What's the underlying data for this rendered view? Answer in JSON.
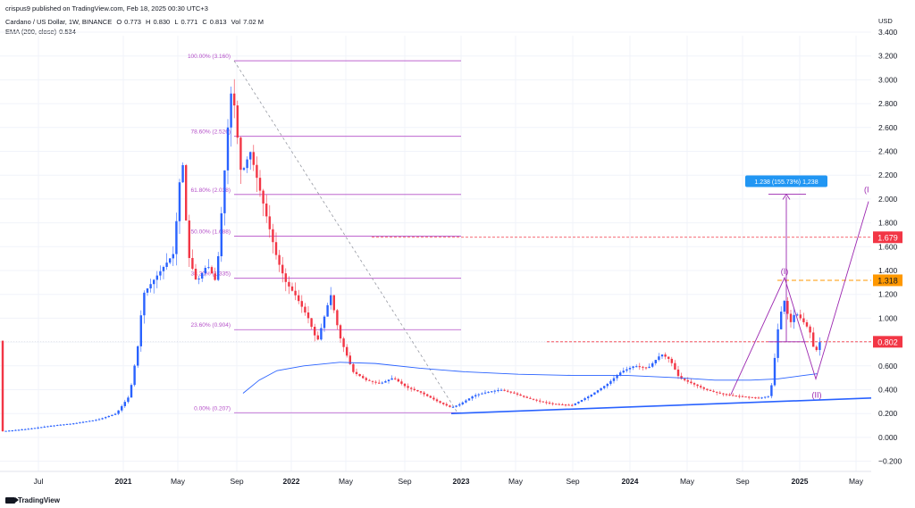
{
  "header": {
    "publisher": "crispus9 published on TradingView.com, Feb 18, 2025 00:30 UTC+3",
    "symbol": "Cardano / US Dollar, 1W, BINANCE",
    "open_label": "O",
    "open": "0.773",
    "high_label": "H",
    "high": "0.830",
    "low_label": "L",
    "low": "0.771",
    "close_label": "C",
    "close": "0.813",
    "vol_label": "Vol",
    "vol": "7.02 M",
    "ema_label": "EMA (200, close)",
    "ema": "0.534"
  },
  "brand": "TradingView",
  "colors": {
    "up": "#2962ff",
    "down": "#f23645",
    "fib": "#b44fc8",
    "ema": "#2962ff",
    "price_badge": "#f23645",
    "orange": "#ff9800",
    "grid": "#f0f3fa"
  },
  "chart_data": {
    "type": "candlestick",
    "currency": "USD",
    "x_ticks": [
      "Jul",
      "2021",
      "May",
      "Sep",
      "2022",
      "May",
      "Sep",
      "2023",
      "May",
      "Sep",
      "2024",
      "May",
      "Sep",
      "2025",
      "May"
    ],
    "y_ticks": [
      "3.400",
      "3.200",
      "3.000",
      "2.800",
      "2.600",
      "2.400",
      "2.200",
      "2.000",
      "1.800",
      "1.600",
      "1.400",
      "1.200",
      "1.000",
      "0.800",
      "0.600",
      "0.400",
      "0.200",
      "0.000",
      "−0.200"
    ],
    "ylim": [
      -0.25,
      3.45
    ],
    "price_badges": [
      {
        "value": 1.679,
        "label": "1.679",
        "color": "#f23645"
      },
      {
        "value": 1.318,
        "label": "1.318",
        "color": "#ff9800"
      },
      {
        "value": 0.802,
        "label": "0.802",
        "color": "#f23645"
      }
    ],
    "fib_levels": [
      {
        "value": 3.16,
        "label": "100.00% (3.160)"
      },
      {
        "value": 2.526,
        "label": "78.60% (2.526)"
      },
      {
        "value": 2.038,
        "label": "61.80% (2.038)"
      },
      {
        "value": 1.688,
        "label": "50.00% (1.688)"
      },
      {
        "value": 1.335,
        "label": "38.20% (1.335)"
      },
      {
        "value": 0.904,
        "label": "23.60% (0.904)"
      },
      {
        "value": 0.207,
        "label": "0.00% (0.207)"
      }
    ],
    "measure_label": "1.238 (155.73%) 1,238",
    "wave_labels": [
      "(I)",
      "(II)",
      "(I"
    ],
    "price_anchors": [
      [
        0,
        0.05
      ],
      [
        30,
        0.07
      ],
      [
        60,
        0.1
      ],
      [
        85,
        0.12
      ],
      [
        110,
        0.15
      ],
      [
        130,
        0.2
      ],
      [
        145,
        0.35
      ],
      [
        155,
        0.8
      ],
      [
        160,
        1.2
      ],
      [
        170,
        1.3
      ],
      [
        180,
        1.4
      ],
      [
        195,
        1.55
      ],
      [
        200,
        2.1
      ],
      [
        205,
        2.3
      ],
      [
        210,
        1.55
      ],
      [
        220,
        1.3
      ],
      [
        232,
        1.45
      ],
      [
        242,
        1.3
      ],
      [
        250,
        2.1
      ],
      [
        258,
        2.9
      ],
      [
        262,
        2.8
      ],
      [
        270,
        2.2
      ],
      [
        280,
        2.4
      ],
      [
        290,
        2.1
      ],
      [
        300,
        1.8
      ],
      [
        310,
        1.5
      ],
      [
        320,
        1.3
      ],
      [
        330,
        1.2
      ],
      [
        345,
        1.0
      ],
      [
        355,
        0.8
      ],
      [
        370,
        1.2
      ],
      [
        380,
        0.85
      ],
      [
        395,
        0.55
      ],
      [
        410,
        0.48
      ],
      [
        425,
        0.45
      ],
      [
        440,
        0.5
      ],
      [
        455,
        0.42
      ],
      [
        470,
        0.38
      ],
      [
        490,
        0.3
      ],
      [
        505,
        0.25
      ],
      [
        515,
        0.28
      ],
      [
        530,
        0.35
      ],
      [
        545,
        0.38
      ],
      [
        560,
        0.4
      ],
      [
        575,
        0.37
      ],
      [
        590,
        0.33
      ],
      [
        605,
        0.3
      ],
      [
        620,
        0.28
      ],
      [
        640,
        0.27
      ],
      [
        660,
        0.35
      ],
      [
        680,
        0.45
      ],
      [
        695,
        0.55
      ],
      [
        710,
        0.6
      ],
      [
        725,
        0.58
      ],
      [
        740,
        0.7
      ],
      [
        750,
        0.65
      ],
      [
        760,
        0.5
      ],
      [
        775,
        0.45
      ],
      [
        790,
        0.4
      ],
      [
        805,
        0.37
      ],
      [
        820,
        0.35
      ],
      [
        835,
        0.34
      ],
      [
        850,
        0.33
      ],
      [
        862,
        0.35
      ],
      [
        866,
        0.6
      ],
      [
        872,
        1.0
      ],
      [
        878,
        1.15
      ],
      [
        884,
        0.95
      ],
      [
        890,
        1.05
      ],
      [
        898,
        0.98
      ],
      [
        906,
        0.9
      ],
      [
        912,
        0.7
      ],
      [
        918,
        0.81
      ]
    ],
    "ema_anchors": [
      [
        272,
        0.37
      ],
      [
        290,
        0.48
      ],
      [
        310,
        0.56
      ],
      [
        340,
        0.6
      ],
      [
        380,
        0.63
      ],
      [
        420,
        0.62
      ],
      [
        470,
        0.58
      ],
      [
        520,
        0.55
      ],
      [
        580,
        0.53
      ],
      [
        640,
        0.52
      ],
      [
        700,
        0.52
      ],
      [
        760,
        0.5
      ],
      [
        800,
        0.48
      ],
      [
        840,
        0.48
      ],
      [
        870,
        0.49
      ],
      [
        900,
        0.52
      ],
      [
        915,
        0.534
      ]
    ]
  }
}
